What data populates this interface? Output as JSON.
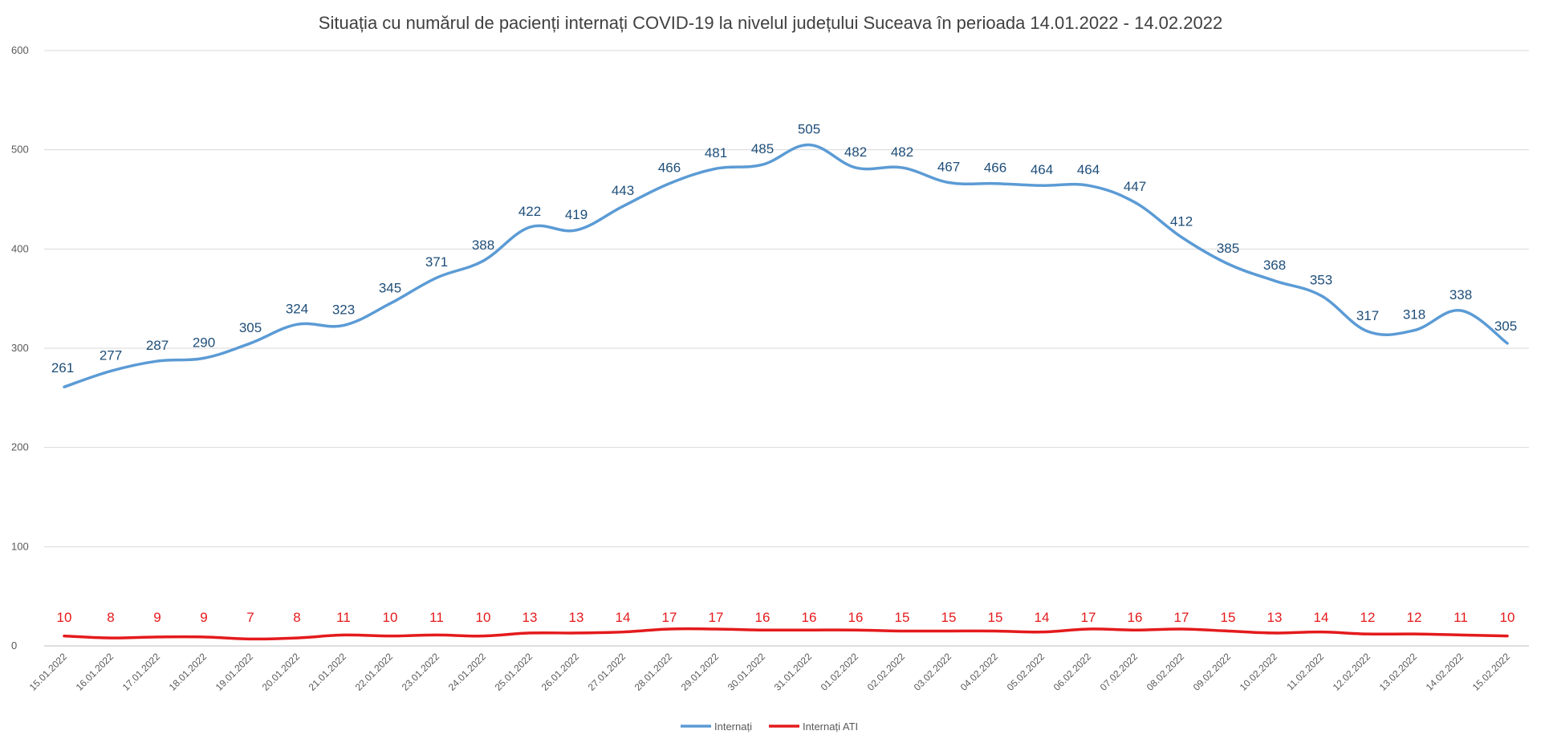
{
  "chart_data": {
    "type": "line",
    "title": "Situația cu numărul de pacienți internați COVID-19 la nivelul județului Suceava în perioada 14.01.2022 - 14.02.2022",
    "xlabel": "",
    "ylabel": "",
    "ylim": [
      0,
      600
    ],
    "yticks": [
      "0",
      "100",
      "200",
      "300",
      "400",
      "500",
      "600"
    ],
    "grid": true,
    "legend_position": "bottom",
    "categories": [
      "15.01.2022",
      "16.01.2022",
      "17.01.2022",
      "18.01.2022",
      "19.01.2022",
      "20.01.2022",
      "21.01.2022",
      "22.01.2022",
      "23.01.2022",
      "24.01.2022",
      "25.01.2022",
      "26.01.2022",
      "27.01.2022",
      "28.01.2022",
      "29.01.2022",
      "30.01.2022",
      "31.01.2022",
      "01.02.2022",
      "02.02.2022",
      "03.02.2022",
      "04.02.2022",
      "05.02.2022",
      "06.02.2022",
      "07.02.2022",
      "08.02.2022",
      "09.02.2022",
      "10.02.2022",
      "11.02.2022",
      "12.02.2022",
      "13.02.2022",
      "14.02.2022",
      "15.02.2022"
    ],
    "series": [
      {
        "name": "Internați",
        "color": "#5b9bd5",
        "label_color": "#1f4e79",
        "values": [
          261,
          277,
          287,
          290,
          305,
          324,
          323,
          345,
          371,
          388,
          422,
          419,
          443,
          466,
          481,
          485,
          505,
          482,
          482,
          467,
          466,
          464,
          464,
          447,
          412,
          385,
          368,
          353,
          317,
          318,
          338,
          305
        ]
      },
      {
        "name": "Internați ATI",
        "color": "#e41a1c",
        "label_color": "#e41a1c",
        "values": [
          10,
          8,
          9,
          9,
          7,
          8,
          11,
          10,
          11,
          10,
          13,
          13,
          14,
          17,
          17,
          16,
          16,
          16,
          15,
          15,
          15,
          14,
          17,
          16,
          17,
          15,
          13,
          14,
          12,
          12,
          11,
          10
        ]
      }
    ]
  }
}
